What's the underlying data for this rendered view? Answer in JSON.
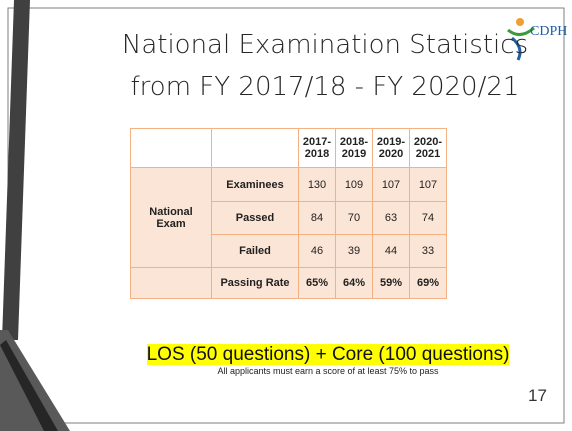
{
  "slide": {
    "title_lines": [
      "National Examination Statistics",
      "from FY 2017/18 - FY 2020/21"
    ],
    "logo": "CDPH",
    "table": {
      "header": [
        "2017-2018",
        "2018-2019",
        "2019-2020",
        "2020-2021"
      ],
      "group": "National Exam",
      "rows": [
        {
          "label": "Examinees",
          "values": [
            130,
            109,
            107,
            107
          ]
        },
        {
          "label": "Passed",
          "values": [
            84,
            70,
            63,
            74
          ]
        },
        {
          "label": "Failed",
          "values": [
            46,
            39,
            44,
            33
          ]
        }
      ],
      "summary": {
        "label": "Passing Rate",
        "values": [
          "65%",
          "64%",
          "59%",
          "69%"
        ]
      }
    },
    "highlight": "LOS (50 questions) + Core (100 questions)",
    "note": "All applicants must earn a score of at least 75% to pass",
    "page_number": "17"
  }
}
